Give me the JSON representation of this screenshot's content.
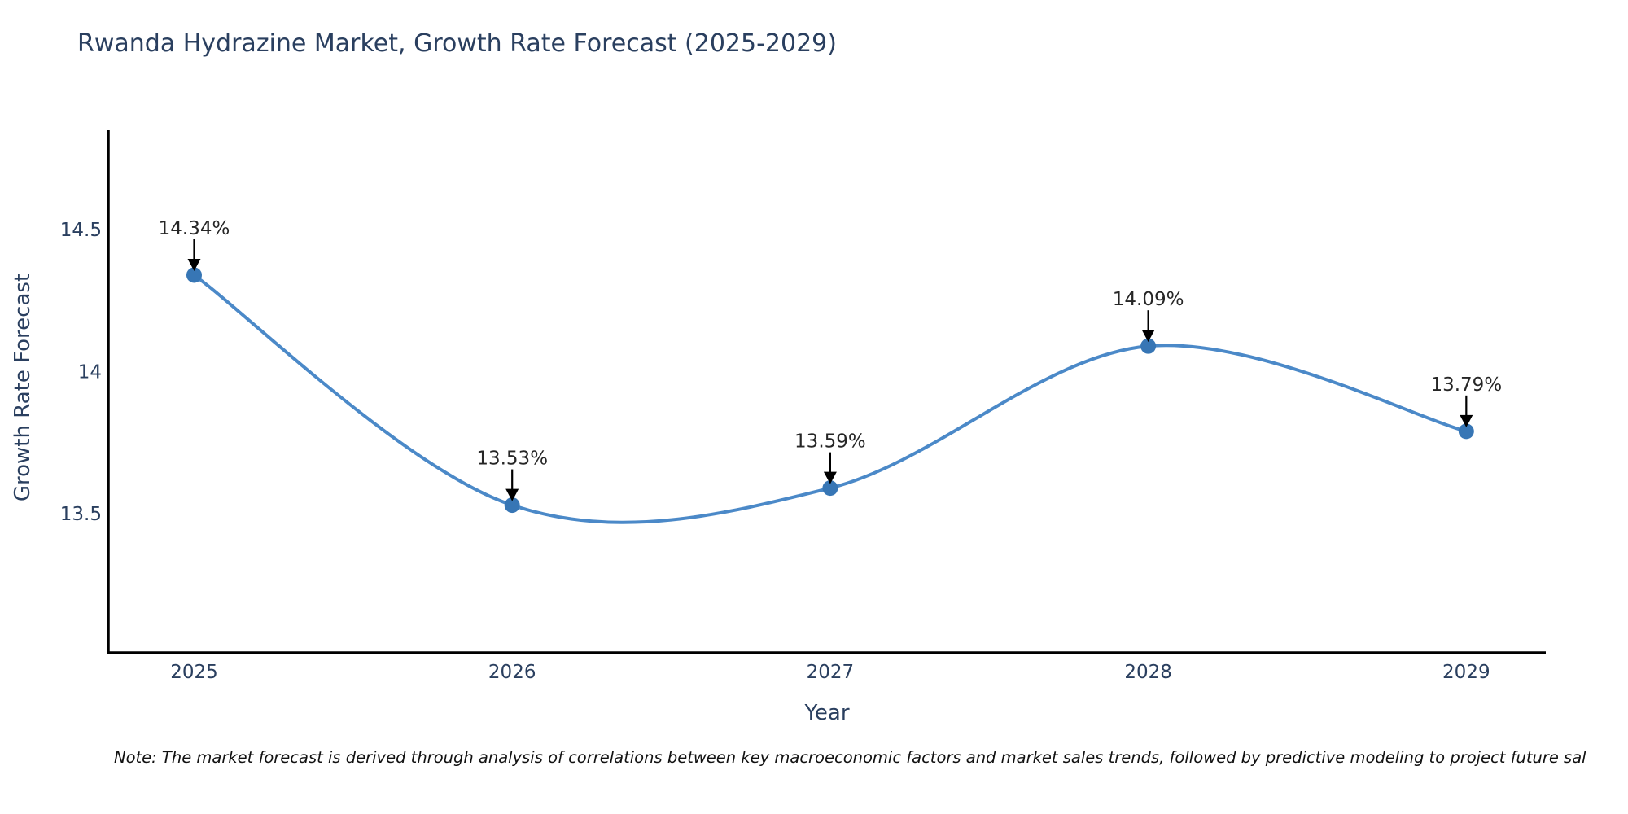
{
  "header": {
    "title": "Rwanda Hydrazine Market, Growth Rate Forecast (2025-2029)"
  },
  "footnote": {
    "text": "Note: The market forecast is derived through analysis of correlations between key macroeconomic factors and market sales trends, followed by predictive modeling to project future sal"
  },
  "chart_data": {
    "type": "line",
    "title": "Rwanda Hydrazine Market, Growth Rate Forecast (2025-2029)",
    "xlabel": "Year",
    "ylabel": "Growth Rate Forecast",
    "x": [
      2025,
      2026,
      2027,
      2028,
      2029
    ],
    "values": [
      14.34,
      13.53,
      13.59,
      14.09,
      13.79
    ],
    "point_labels": [
      "14.34%",
      "13.53%",
      "13.59%",
      "14.09%",
      "13.79%"
    ],
    "xtick_labels": [
      "2025",
      "2026",
      "2027",
      "2028",
      "2029"
    ],
    "yticks": [
      13.5,
      14,
      14.5
    ],
    "ytick_labels": [
      "13.5",
      "14",
      "14.5"
    ],
    "xlim": [
      2024.73,
      2029.25
    ],
    "ylim": [
      13.01,
      14.85
    ],
    "grid": false,
    "legend": "none",
    "curve": "spline",
    "colors": {
      "line": "#4b89c8",
      "marker": "#3776b5",
      "axis": "#000000",
      "tick_text": "#2a3f5f",
      "annotation_text": "#262626",
      "arrow": "#000000"
    }
  }
}
